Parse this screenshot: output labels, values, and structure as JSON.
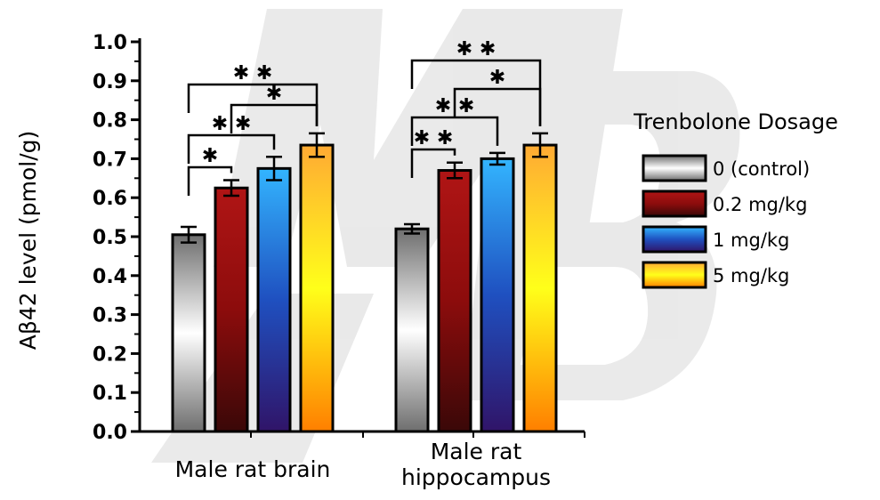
{
  "chart_data": {
    "type": "bar",
    "ylabel": "Aβ42 level (pmol/g)",
    "ylim": [
      0,
      1.0
    ],
    "yticks": [
      "0.0",
      "0.1",
      "0.2",
      "0.3",
      "0.4",
      "0.5",
      "0.6",
      "0.7",
      "0.8",
      "0.9",
      "1.0"
    ],
    "categories": [
      {
        "lines": [
          "Male rat brain"
        ]
      },
      {
        "lines": [
          "Male rat",
          "hippocampus"
        ]
      }
    ],
    "legend_title": "Trenbolone Dosage",
    "legend_position": "right",
    "series": [
      {
        "name": "0 (control)",
        "values": [
          0.505,
          0.52
        ],
        "errors": [
          0.02,
          0.012
        ],
        "colors": [
          "#6e6e6e",
          "#ffffff",
          "#6e6e6e"
        ]
      },
      {
        "name": "0.2 mg/kg",
        "values": [
          0.625,
          0.67
        ],
        "errors": [
          0.02,
          0.02
        ],
        "colors": [
          "#b01515",
          "#8c0c0c",
          "#3a0808"
        ]
      },
      {
        "name": "1 mg/kg",
        "values": [
          0.675,
          0.7
        ],
        "errors": [
          0.03,
          0.015
        ],
        "colors": [
          "#33b5ff",
          "#1f50c0",
          "#301468"
        ]
      },
      {
        "name": "5 mg/kg",
        "values": [
          0.735,
          0.735
        ],
        "errors": [
          0.03,
          0.03
        ],
        "colors": [
          "#ffaa33",
          "#ffff1a",
          "#ff7f00"
        ]
      }
    ],
    "significance": [
      {
        "group": 0,
        "from": 0,
        "to": 1,
        "label": "✱"
      },
      {
        "group": 0,
        "from": 0,
        "to": 2,
        "label": "✱ ✱"
      },
      {
        "group": 0,
        "from": 1,
        "to": 3,
        "label": "✱"
      },
      {
        "group": 0,
        "from": 0,
        "to": 3,
        "label": "✱ ✱"
      },
      {
        "group": 1,
        "from": 0,
        "to": 1,
        "label": "✱ ✱"
      },
      {
        "group": 1,
        "from": 0,
        "to": 2,
        "label": "✱ ✱"
      },
      {
        "group": 1,
        "from": 1,
        "to": 3,
        "label": "✱"
      },
      {
        "group": 1,
        "from": 0,
        "to": 3,
        "label": "✱ ✱"
      }
    ]
  }
}
